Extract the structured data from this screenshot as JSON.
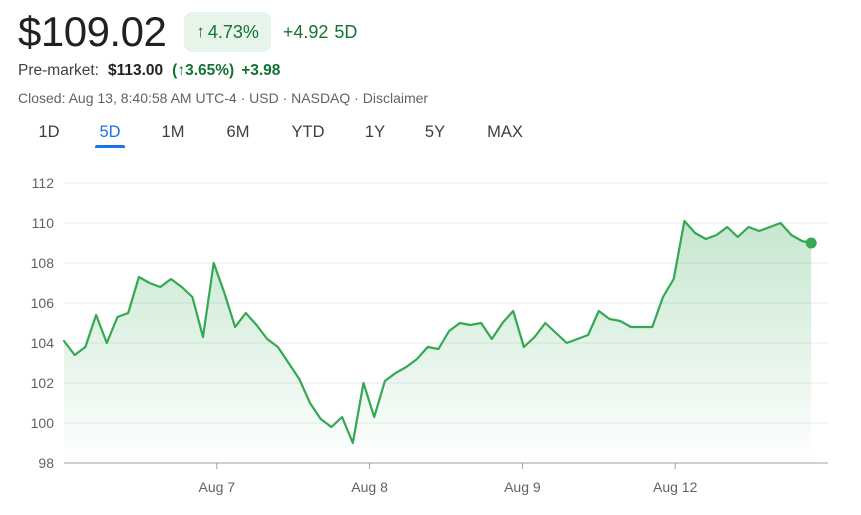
{
  "quote": {
    "price": "$109.02",
    "pct_arrow": "↑",
    "pct_change": "4.73%",
    "abs_change": "+4.92",
    "period": "5D"
  },
  "premarket": {
    "label": "Pre-market:",
    "price": "$113.00",
    "pct": "(↑3.65%)",
    "change": "+3.98"
  },
  "status": {
    "closed": "Closed: Aug 13, 8:40:58 AM UTC-4",
    "currency": "USD",
    "exchange": "NASDAQ",
    "disclaimer": "Disclaimer",
    "sep": " · "
  },
  "tabs": [
    {
      "label": "1D",
      "active": false
    },
    {
      "label": "5D",
      "active": true
    },
    {
      "label": "1M",
      "active": false
    },
    {
      "label": "6M",
      "active": false
    },
    {
      "label": "YTD",
      "active": false
    },
    {
      "label": "1Y",
      "active": false
    },
    {
      "label": "5Y",
      "active": false
    },
    {
      "label": "MAX",
      "active": false
    }
  ],
  "colors": {
    "up": "#34a853",
    "up_text": "#137333",
    "grid": "#e8eaed",
    "axis_text": "#5f6368",
    "accent": "#1a73e8"
  },
  "chart_data": {
    "type": "area",
    "ylim": [
      98,
      112
    ],
    "y_ticks": [
      98,
      100,
      102,
      104,
      106,
      108,
      110,
      112
    ],
    "y_tick_labels": [
      "98",
      "100",
      "102",
      "104",
      "106",
      "108",
      "110",
      "112"
    ],
    "x_range": [
      0,
      50
    ],
    "x_ticks": [
      10,
      20,
      30,
      40
    ],
    "x_tick_labels": [
      "Aug 7",
      "Aug 8",
      "Aug 9",
      "Aug 12"
    ],
    "grid": "horizontal",
    "series": [
      {
        "values": [
          [
            0,
            104.1
          ],
          [
            0.7,
            103.4
          ],
          [
            1.4,
            103.8
          ],
          [
            2.1,
            105.4
          ],
          [
            2.8,
            104.0
          ],
          [
            3.5,
            105.3
          ],
          [
            4.2,
            105.5
          ],
          [
            4.9,
            107.3
          ],
          [
            5.6,
            107.0
          ],
          [
            6.3,
            106.8
          ],
          [
            7.0,
            107.2
          ],
          [
            7.7,
            106.8
          ],
          [
            8.4,
            106.3
          ],
          [
            9.1,
            104.3
          ],
          [
            9.8,
            108.0
          ],
          [
            10.5,
            106.5
          ],
          [
            11.2,
            104.8
          ],
          [
            11.9,
            105.5
          ],
          [
            12.6,
            104.9
          ],
          [
            13.3,
            104.2
          ],
          [
            14.0,
            103.8
          ],
          [
            14.7,
            103.0
          ],
          [
            15.4,
            102.2
          ],
          [
            16.1,
            101.0
          ],
          [
            16.8,
            100.2
          ],
          [
            17.5,
            99.8
          ],
          [
            18.2,
            100.3
          ],
          [
            18.9,
            99.0
          ],
          [
            19.6,
            102.0
          ],
          [
            20.3,
            100.3
          ],
          [
            21.0,
            102.1
          ],
          [
            21.7,
            102.5
          ],
          [
            22.4,
            102.8
          ],
          [
            23.1,
            103.2
          ],
          [
            23.8,
            103.8
          ],
          [
            24.5,
            103.7
          ],
          [
            25.2,
            104.6
          ],
          [
            25.9,
            105.0
          ],
          [
            26.6,
            104.9
          ],
          [
            27.3,
            105.0
          ],
          [
            28.0,
            104.2
          ],
          [
            28.7,
            105.0
          ],
          [
            29.4,
            105.6
          ],
          [
            30.1,
            103.8
          ],
          [
            30.8,
            104.3
          ],
          [
            31.5,
            105.0
          ],
          [
            32.2,
            104.5
          ],
          [
            32.9,
            104.0
          ],
          [
            33.6,
            104.2
          ],
          [
            34.3,
            104.4
          ],
          [
            35.0,
            105.6
          ],
          [
            35.7,
            105.2
          ],
          [
            36.4,
            105.1
          ],
          [
            37.1,
            104.8
          ],
          [
            37.8,
            104.8
          ],
          [
            38.5,
            104.8
          ],
          [
            39.2,
            106.3
          ],
          [
            39.9,
            107.2
          ],
          [
            40.6,
            110.1
          ],
          [
            41.3,
            109.5
          ],
          [
            42.0,
            109.2
          ],
          [
            42.7,
            109.4
          ],
          [
            43.4,
            109.8
          ],
          [
            44.1,
            109.3
          ],
          [
            44.8,
            109.8
          ],
          [
            45.5,
            109.6
          ],
          [
            46.2,
            109.8
          ],
          [
            46.9,
            110.0
          ],
          [
            47.6,
            109.4
          ],
          [
            48.3,
            109.1
          ],
          [
            48.9,
            109.0
          ]
        ]
      }
    ]
  }
}
